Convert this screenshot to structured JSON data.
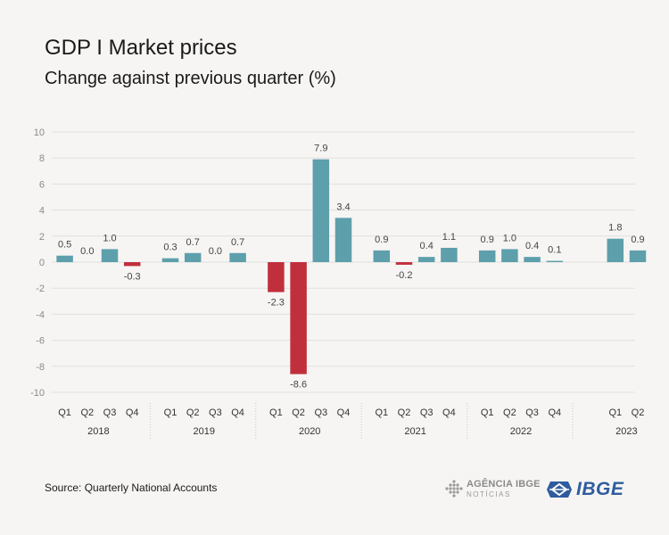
{
  "title": "GDP I Market prices",
  "subtitle": "Change against previous quarter (%)",
  "source": "Source: Quarterly National Accounts",
  "logos": {
    "agencia_top": "AGÊNCIA IBGE",
    "agencia_bottom": "NOTÍCIAS",
    "ibge": "IBGE"
  },
  "colors": {
    "positive": "#5e9fac",
    "negative": "#c0303c",
    "grid": "#e2e0dd",
    "label": "#444444",
    "background": "#f6f5f3",
    "logo_blue": "#2f5c9e"
  },
  "chart_data": {
    "type": "bar",
    "title": "",
    "xlabel": "",
    "ylabel": "",
    "ylim": [
      -10,
      10
    ],
    "yticks": [
      10,
      8,
      6,
      4,
      2,
      0,
      -2,
      -4,
      -6,
      -8,
      -10
    ],
    "grid": true,
    "groups": [
      {
        "year": "2018",
        "quarters": [
          "Q1",
          "Q2",
          "Q3",
          "Q4"
        ],
        "values": [
          0.5,
          0.0,
          1.0,
          -0.3
        ],
        "labels": [
          "0.5",
          "0.0",
          "1.0",
          "-0.3"
        ]
      },
      {
        "year": "2019",
        "quarters": [
          "Q1",
          "Q2",
          "Q3",
          "Q4"
        ],
        "values": [
          0.3,
          0.7,
          0.0,
          0.7
        ],
        "labels": [
          "0.3",
          "0.7",
          "0.0",
          "0.7"
        ]
      },
      {
        "year": "2020",
        "quarters": [
          "Q1",
          "Q2",
          "Q3",
          "Q4"
        ],
        "values": [
          -2.3,
          -8.6,
          7.9,
          3.4
        ],
        "labels": [
          "-2.3",
          "-8.6",
          "7.9",
          "3.4"
        ]
      },
      {
        "year": "2021",
        "quarters": [
          "Q1",
          "Q2",
          "Q3",
          "Q4"
        ],
        "values": [
          0.9,
          -0.2,
          0.4,
          1.1
        ],
        "labels": [
          "0.9",
          "-0.2",
          "0.4",
          "1.1"
        ]
      },
      {
        "year": "2022",
        "quarters": [
          "Q1",
          "Q2",
          "Q3",
          "Q4"
        ],
        "values": [
          0.9,
          1.0,
          0.4,
          0.1
        ],
        "labels": [
          "0.9",
          "1.0",
          "0.4",
          "0.1"
        ]
      },
      {
        "year": "2023",
        "quarters": [
          "Q1",
          "Q2"
        ],
        "values": [
          1.8,
          0.9
        ],
        "labels": [
          "1.8",
          "0.9"
        ]
      }
    ]
  }
}
